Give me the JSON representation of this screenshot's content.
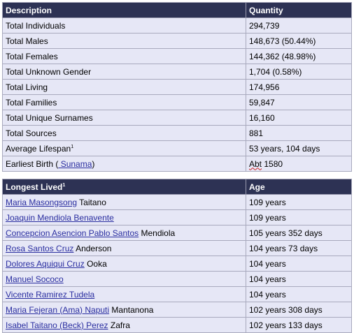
{
  "stats": {
    "header": {
      "description": "Description",
      "quantity": "Quantity"
    },
    "rows": [
      {
        "label": "Total Individuals",
        "value": "294,739"
      },
      {
        "label": "Total Males",
        "value": "148,673 (50.44%)"
      },
      {
        "label": "Total Females",
        "value": "144,362 (48.98%)"
      },
      {
        "label": "Total Unknown Gender",
        "value": "1,704 (0.58%)"
      },
      {
        "label": "Total Living",
        "value": "174,956"
      },
      {
        "label": "Total Families",
        "value": "59,847"
      },
      {
        "label": "Total Unique Surnames",
        "value": "16,160"
      },
      {
        "label": "Total Sources",
        "value": "881"
      },
      {
        "label": "Average Lifespan",
        "sup": "1",
        "value": "53 years, 104 days"
      },
      {
        "label": "Earliest Birth (",
        "link": " Sunama",
        "label_end": ")",
        "value_prefix": "Abt",
        "value": " 1580"
      }
    ]
  },
  "longest_lived": {
    "header": {
      "name": "Longest Lived",
      "sup": "1",
      "age": "Age"
    },
    "rows": [
      {
        "link": "Maria Masongsong",
        "suffix": " Taitano",
        "age": "109 years"
      },
      {
        "link": "Joaquin Mendiola Benavente",
        "suffix": "",
        "age": "109 years"
      },
      {
        "link": "Concepcion Asencion Pablo Santos",
        "suffix": " Mendiola",
        "age": "105 years 352 days"
      },
      {
        "link": "Rosa Santos Cruz",
        "suffix": " Anderson",
        "age": "104 years 73 days"
      },
      {
        "link": "Dolores Aquiqui Cruz",
        "suffix": " Ooka",
        "age": "104 years"
      },
      {
        "link": "Manuel Sococo",
        "suffix": "",
        "age": "104 years"
      },
      {
        "link": "Vicente Ramirez Tudela",
        "suffix": "",
        "age": "104 years"
      },
      {
        "link": "Maria Fejeran (Ama) Naputi",
        "suffix": " Mantanona",
        "age": "102 years 308 days"
      },
      {
        "link": "Isabel Taitano (Beck) Perez",
        "suffix": " Zafra",
        "age": "102 years 133 days"
      }
    ]
  },
  "colors": {
    "header_bg": "#2d3254",
    "cell_bg": "#e6e7f6",
    "link": "#2a2ea0"
  }
}
